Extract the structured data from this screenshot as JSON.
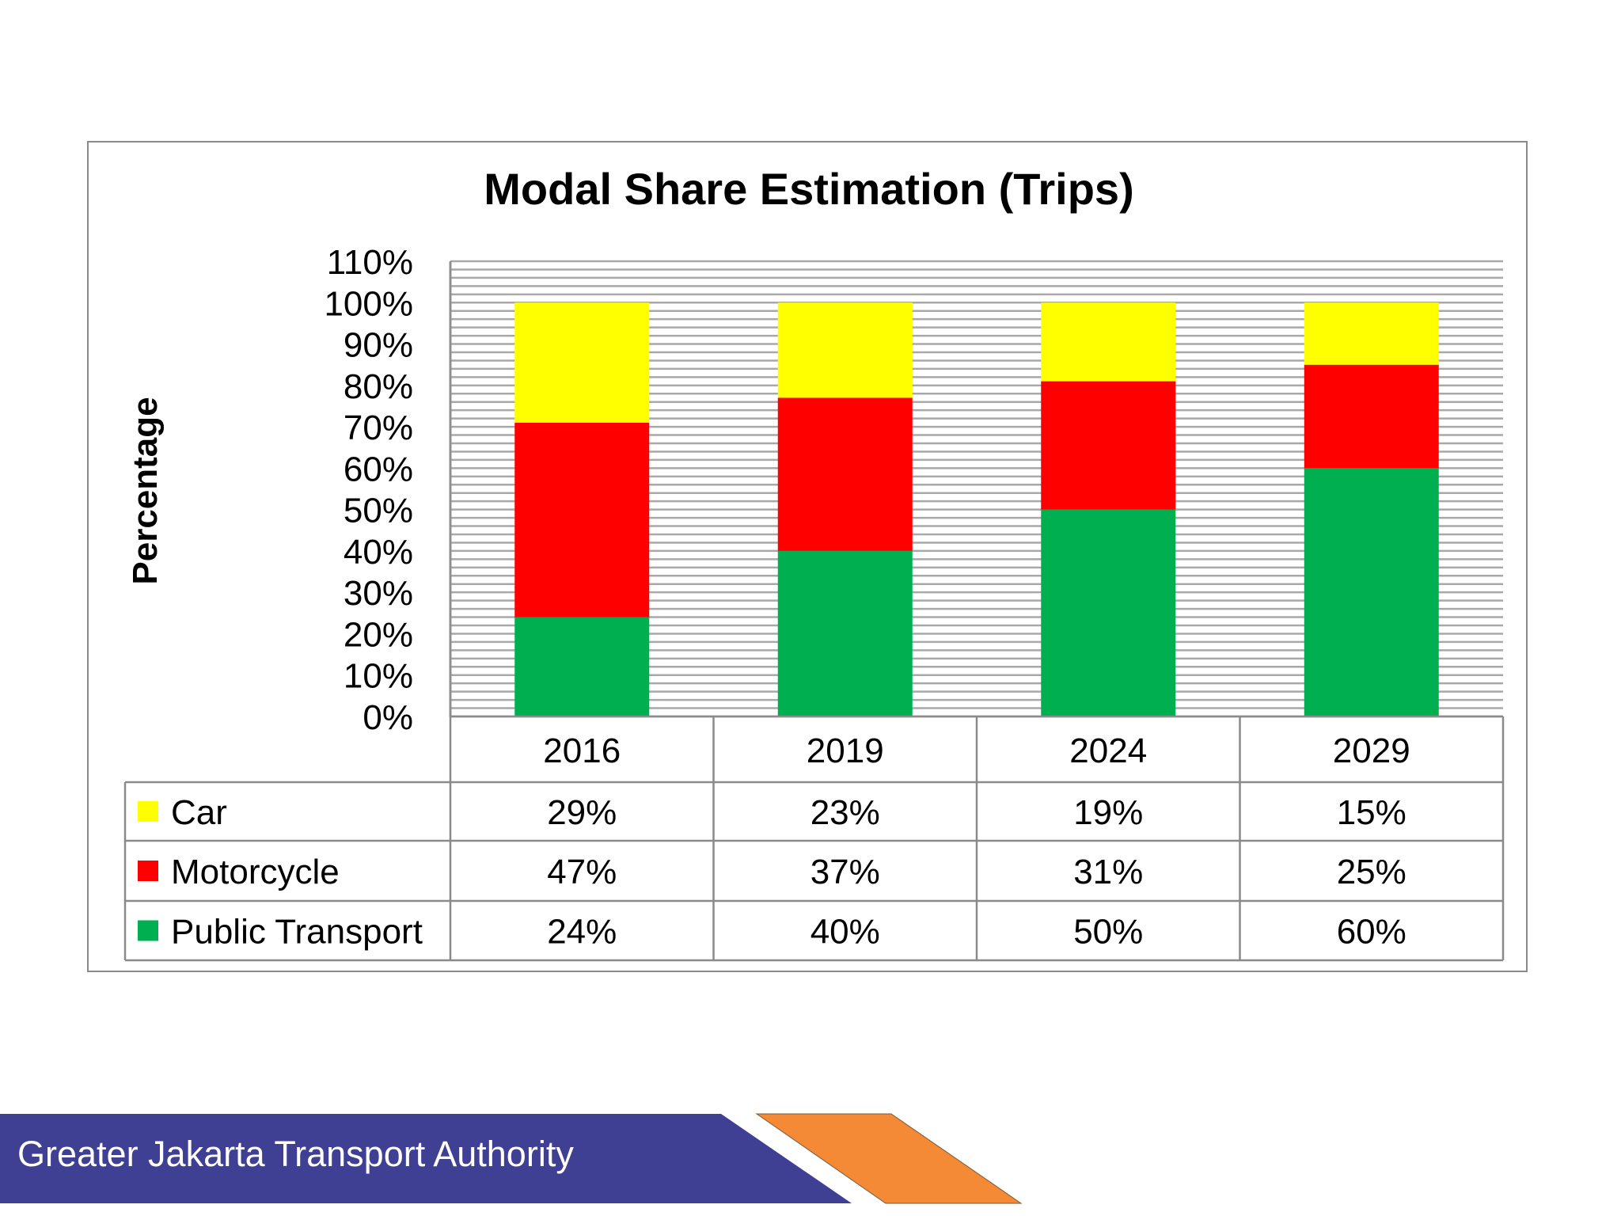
{
  "chart_data": {
    "type": "bar",
    "stacked": true,
    "title": "Modal Share Estimation (Trips)",
    "ylabel": "Percentage",
    "xlabel": "",
    "ylim": [
      0,
      110
    ],
    "yticks": [
      "0%",
      "10%",
      "20%",
      "30%",
      "40%",
      "50%",
      "60%",
      "70%",
      "80%",
      "90%",
      "100%",
      "110%"
    ],
    "grid": "minor horizontal lines every 2%",
    "categories": [
      "2016",
      "2019",
      "2024",
      "2029"
    ],
    "series": [
      {
        "name": "Public Transport",
        "color": "#00b050",
        "values": [
          24,
          40,
          50,
          60
        ],
        "labels": [
          "24%",
          "40%",
          "50%",
          "60%"
        ]
      },
      {
        "name": "Motorcycle",
        "color": "#ff0000",
        "values": [
          47,
          37,
          31,
          25
        ],
        "labels": [
          "47%",
          "37%",
          "31%",
          "25%"
        ]
      },
      {
        "name": "Car",
        "color": "#ffff00",
        "values": [
          29,
          23,
          19,
          15
        ],
        "labels": [
          "29%",
          "23%",
          "19%",
          "15%"
        ]
      }
    ],
    "data_table_order": [
      "Car",
      "Motorcycle",
      "Public Transport"
    ]
  },
  "footer": {
    "org_name": "Greater Jakarta Transport Authority",
    "colors": {
      "banner": "#3f3f94",
      "accent": "#f48a35"
    }
  }
}
